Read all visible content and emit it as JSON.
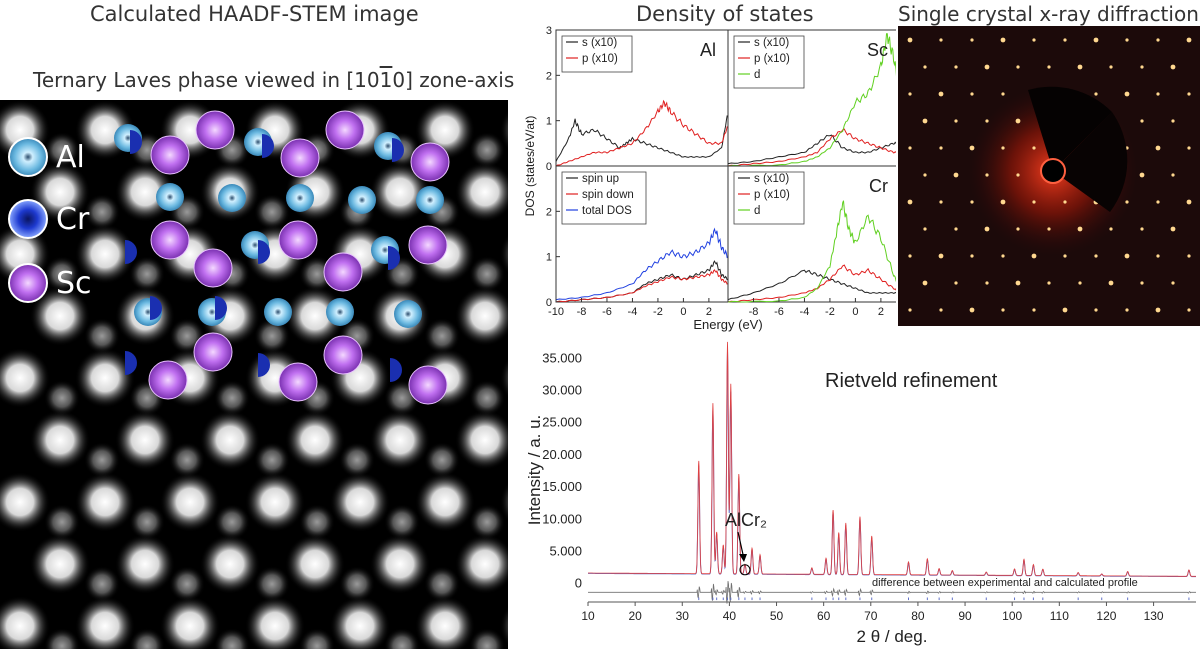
{
  "stem": {
    "title": "Calculated HAADF-STEM image",
    "subtitle_prefix": "Ternary Laves phase viewed in ",
    "zone_axis": "[10",
    "zone_axis_bar": "1",
    "zone_axis_end": "0]",
    "subtitle_suffix": " zone-axis",
    "legend": [
      {
        "label": "Al",
        "color": "#5ab4e0"
      },
      {
        "label": "Cr",
        "color": "#1a2fb0"
      },
      {
        "label": "Sc",
        "color": "#b05ae0"
      }
    ]
  },
  "dos": {
    "title": "Density of states",
    "ylabel": "DOS (states/eV/at)",
    "xlabel": "Energy (eV)",
    "panels": [
      {
        "element": "Al",
        "legend": [
          "s (x10)",
          "p (x10)"
        ]
      },
      {
        "element": "Sc",
        "legend": [
          "s (x10)",
          "p (x10)",
          "d"
        ]
      },
      {
        "element": "",
        "legend": [
          "spin up",
          "spin down",
          "total DOS"
        ]
      },
      {
        "element": "Cr",
        "legend": [
          "s (x10)",
          "p (x10)",
          "d"
        ]
      }
    ],
    "colors": {
      "s": "#222222",
      "p": "#e02020",
      "d": "#60d020",
      "total": "#2040e0"
    }
  },
  "xrd": {
    "title": "Single crystal x-ray diffraction"
  },
  "rietveld": {
    "title": "Rietveld refinement",
    "ylabel": "Intensity / a. u.",
    "xlabel": "2 θ / deg.",
    "peak_label": "AlCr₂",
    "difference_label": "difference between experimental and calculated profile"
  },
  "chart_data": [
    {
      "type": "line",
      "title": "Density of states",
      "xlabel": "Energy (eV)",
      "ylabel": "DOS (states/eV/at)",
      "xlim": [
        -10,
        3.5
      ],
      "ylim": [
        0,
        3
      ],
      "x_ticks": [
        -10,
        -8,
        -6,
        -4,
        -2,
        0,
        2
      ],
      "y_ticks": [
        0,
        1,
        2,
        3
      ],
      "panels": [
        {
          "label": "Al",
          "series": [
            {
              "name": "s (x10)",
              "x": [
                -10,
                -9,
                -8.5,
                -8,
                -7,
                -6,
                -5,
                -4.5,
                -4,
                -3,
                -2,
                -1,
                0,
                1,
                2,
                3,
                3.5
              ],
              "values": [
                0.1,
                0.6,
                1.0,
                0.7,
                0.8,
                0.6,
                0.4,
                0.5,
                0.6,
                0.5,
                0.4,
                0.3,
                0.2,
                0.2,
                0.2,
                0.4,
                1.2
              ]
            },
            {
              "name": "p (x10)",
              "x": [
                -10,
                -9,
                -8,
                -7,
                -6,
                -5,
                -4,
                -3,
                -2,
                -1.5,
                -1,
                0,
                1,
                2,
                3,
                3.5
              ],
              "values": [
                0,
                0.1,
                0.2,
                0.3,
                0.3,
                0.4,
                0.5,
                0.8,
                1.2,
                1.4,
                1.2,
                0.9,
                0.7,
                0.5,
                0.5,
                0.9
              ]
            }
          ]
        },
        {
          "label": "Sc",
          "series": [
            {
              "name": "s (x10)",
              "x": [
                -10,
                -8,
                -6,
                -4,
                -3,
                -2,
                -1,
                0,
                1,
                2,
                3,
                3.5
              ],
              "values": [
                0.05,
                0.1,
                0.2,
                0.3,
                0.5,
                0.7,
                0.4,
                0.3,
                0.3,
                0.4,
                0.5,
                0.5
              ]
            },
            {
              "name": "p (x10)",
              "x": [
                -10,
                -8,
                -6,
                -4,
                -3,
                -2,
                -1,
                0,
                1,
                2,
                3,
                3.5
              ],
              "values": [
                0,
                0.05,
                0.1,
                0.2,
                0.3,
                0.6,
                0.8,
                0.6,
                0.5,
                0.4,
                0.3,
                0.3
              ]
            },
            {
              "name": "d",
              "x": [
                -10,
                -6,
                -4,
                -3,
                -2,
                -1,
                0,
                1,
                2,
                2.5,
                3,
                3.5
              ],
              "values": [
                0,
                0.02,
                0.1,
                0.2,
                0.4,
                0.8,
                1.4,
                1.6,
                2.2,
                2.9,
                2.4,
                1.6
              ]
            }
          ]
        },
        {
          "label": "",
          "series": [
            {
              "name": "spin up",
              "x": [
                -10,
                -8,
                -6,
                -4,
                -3,
                -2,
                -1,
                0,
                1,
                2,
                2.5,
                3,
                3.5
              ],
              "values": [
                0,
                0.05,
                0.1,
                0.2,
                0.4,
                0.5,
                0.6,
                0.5,
                0.6,
                0.7,
                0.9,
                0.6,
                0.5
              ]
            },
            {
              "name": "spin down",
              "x": [
                -10,
                -8,
                -6,
                -4,
                -3,
                -2,
                -1,
                0,
                1,
                2,
                2.5,
                3,
                3.5
              ],
              "values": [
                0,
                0.05,
                0.1,
                0.2,
                0.35,
                0.45,
                0.55,
                0.5,
                0.55,
                0.6,
                0.7,
                0.5,
                0.4
              ]
            },
            {
              "name": "total DOS",
              "x": [
                -10,
                -8,
                -6,
                -4,
                -3,
                -2,
                -1,
                0,
                1,
                2,
                2.5,
                3,
                3.5
              ],
              "values": [
                0.05,
                0.1,
                0.2,
                0.4,
                0.7,
                0.9,
                1.1,
                1.0,
                1.1,
                1.3,
                1.6,
                1.2,
                1.0
              ]
            }
          ]
        },
        {
          "label": "Cr",
          "series": [
            {
              "name": "s (x10)",
              "x": [
                -10,
                -8,
                -6,
                -4,
                -3,
                -2,
                -1,
                0,
                1,
                2,
                3,
                3.5
              ],
              "values": [
                0.05,
                0.2,
                0.4,
                0.7,
                0.6,
                0.5,
                0.4,
                0.3,
                0.2,
                0.2,
                0.2,
                0.2
              ]
            },
            {
              "name": "p (x10)",
              "x": [
                -10,
                -8,
                -6,
                -4,
                -3,
                -2,
                -1,
                0,
                1,
                2,
                3,
                3.5
              ],
              "values": [
                0,
                0.05,
                0.1,
                0.2,
                0.3,
                0.5,
                0.8,
                0.6,
                0.7,
                0.5,
                0.3,
                0.2
              ]
            },
            {
              "name": "d",
              "x": [
                -10,
                -6,
                -4,
                -3,
                -2,
                -1.5,
                -1,
                -0.5,
                0,
                1,
                2,
                3,
                3.5
              ],
              "values": [
                0,
                0.02,
                0.1,
                0.3,
                0.8,
                1.5,
                2.2,
                1.6,
                1.3,
                1.9,
                1.4,
                0.6,
                0.3
              ]
            }
          ]
        }
      ]
    },
    {
      "type": "line",
      "title": "Rietveld refinement",
      "xlabel": "2 θ / deg.",
      "ylabel": "Intensity / a. u.",
      "xlim": [
        10,
        139
      ],
      "ylim": [
        -3000,
        38000
      ],
      "x_ticks": [
        10,
        20,
        30,
        40,
        50,
        60,
        70,
        80,
        90,
        100,
        110,
        120,
        130
      ],
      "y_ticks": [
        0,
        5000,
        10000,
        15000,
        20000,
        25000,
        30000,
        35000
      ],
      "y_tick_labels": [
        "0",
        "5.000",
        "10.000",
        "15.000",
        "20.000",
        "25.000",
        "30.000",
        "35.000"
      ],
      "background": 1500,
      "peaks": [
        {
          "x": 33.5,
          "y": 19000
        },
        {
          "x": 36.5,
          "y": 28000
        },
        {
          "x": 37.3,
          "y": 8000
        },
        {
          "x": 38.7,
          "y": 6000
        },
        {
          "x": 39.6,
          "y": 37500
        },
        {
          "x": 40.3,
          "y": 31000
        },
        {
          "x": 42.0,
          "y": 17000
        },
        {
          "x": 43.3,
          "y": 3000
        },
        {
          "x": 44.8,
          "y": 5500
        },
        {
          "x": 46.5,
          "y": 4500
        },
        {
          "x": 57.5,
          "y": 2500
        },
        {
          "x": 60.5,
          "y": 4000
        },
        {
          "x": 62.0,
          "y": 11500
        },
        {
          "x": 63.2,
          "y": 8000
        },
        {
          "x": 64.7,
          "y": 9500
        },
        {
          "x": 67.7,
          "y": 10500
        },
        {
          "x": 70.2,
          "y": 7500
        },
        {
          "x": 78.0,
          "y": 3500
        },
        {
          "x": 82.0,
          "y": 4000
        },
        {
          "x": 84.5,
          "y": 2500
        },
        {
          "x": 87.3,
          "y": 2200
        },
        {
          "x": 94.5,
          "y": 2000
        },
        {
          "x": 100.5,
          "y": 2500
        },
        {
          "x": 102.5,
          "y": 4000
        },
        {
          "x": 104.5,
          "y": 3200
        },
        {
          "x": 106.5,
          "y": 2500
        },
        {
          "x": 114.0,
          "y": 2000
        },
        {
          "x": 119.0,
          "y": 1800
        },
        {
          "x": 124.5,
          "y": 2200
        },
        {
          "x": 137.5,
          "y": 2500
        }
      ]
    }
  ]
}
